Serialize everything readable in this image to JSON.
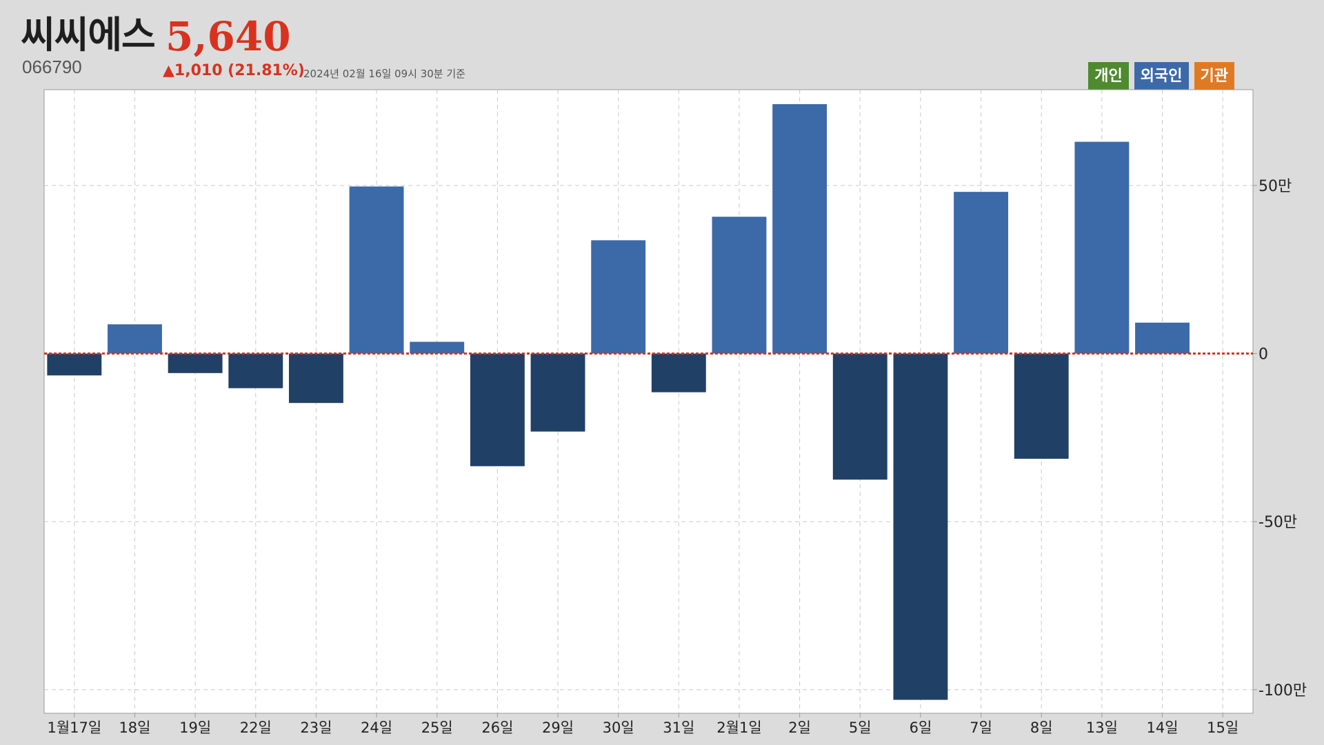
{
  "header": {
    "name": "씨씨에스",
    "code": "066790",
    "price": "5,640",
    "change": "▲1,010 (21.81%)",
    "timestamp": "2024년 02월 16일 09시 30분 기준"
  },
  "legend": [
    {
      "label": "개인",
      "color": "#4e8a2e"
    },
    {
      "label": "외국인",
      "color": "#3c6aa8"
    },
    {
      "label": "기관",
      "color": "#e07a22"
    }
  ],
  "chart_data": {
    "type": "bar",
    "categories": [
      "1월17일",
      "18일",
      "19일",
      "22일",
      "23일",
      "24일",
      "25일",
      "26일",
      "29일",
      "30일",
      "31일",
      "2월1일",
      "2일",
      "5일",
      "6일",
      "7일",
      "8일",
      "13일",
      "14일",
      "15일"
    ],
    "values": [
      -65000,
      87000,
      -58000,
      -103000,
      -147000,
      497000,
      35000,
      -335000,
      -232000,
      337000,
      -115000,
      407000,
      742000,
      -375000,
      -1030000,
      481000,
      -313000,
      630000,
      92000,
      null
    ],
    "ylim": [
      -1070000,
      785000
    ],
    "yticks": [
      500000,
      0,
      -500000,
      -1000000
    ],
    "ytick_labels": [
      "50만",
      "0",
      "-50만",
      "-100만"
    ],
    "grid": true,
    "positive_color": "#3c6aa8",
    "negative_color": "#214066",
    "zero_line_color": "#d8321e"
  }
}
